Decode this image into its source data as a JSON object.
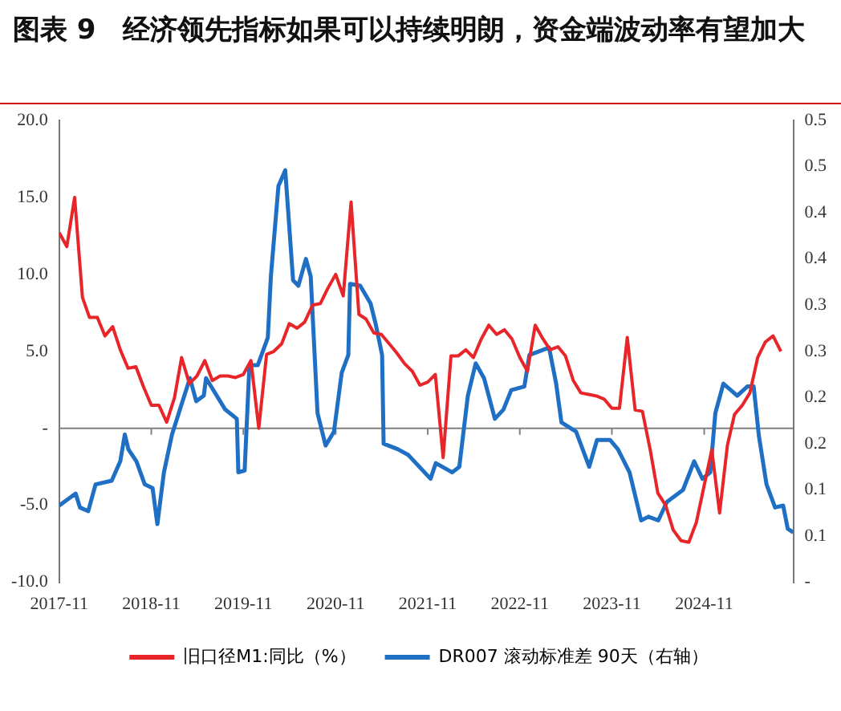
{
  "chart_data": {
    "type": "line",
    "title": "图表 9　经济领先指标如果可以持续明朗，资金端波动率有望加大",
    "xlim": [
      "2017-11",
      "2025-10-20"
    ],
    "xticks": [
      "2017-11",
      "2018-11",
      "2019-11",
      "2020-11",
      "2021-11",
      "2022-11",
      "2023-11",
      "2024-11"
    ],
    "ylim": [
      -10,
      20
    ],
    "yticks": [
      {
        "value": -10,
        "label": "-10.0"
      },
      {
        "value": -5,
        "label": "-5.0"
      },
      {
        "value": 0,
        "label": "-"
      },
      {
        "value": 5,
        "label": "5.0"
      },
      {
        "value": 10,
        "label": "10.0"
      },
      {
        "value": 15,
        "label": "15.0"
      },
      {
        "value": 20,
        "label": "20.0"
      }
    ],
    "y2lim": [
      0,
      0.5
    ],
    "y2ticks": [
      {
        "value": 0,
        "label": "-"
      },
      {
        "value": 0.05,
        "label": "0.1"
      },
      {
        "value": 0.1,
        "label": "0.1"
      },
      {
        "value": 0.15,
        "label": "0.2"
      },
      {
        "value": 0.2,
        "label": "0.2"
      },
      {
        "value": 0.25,
        "label": "0.3"
      },
      {
        "value": 0.3,
        "label": "0.3"
      },
      {
        "value": 0.35,
        "label": "0.4"
      },
      {
        "value": 0.4,
        "label": "0.4"
      },
      {
        "value": 0.45,
        "label": "0.5"
      },
      {
        "value": 0.5,
        "label": "0.5"
      }
    ],
    "grid": false,
    "ref_lines": [
      {
        "axis": "y",
        "value": 0,
        "color": "#808080"
      }
    ],
    "legend": "bottom",
    "marker": "none",
    "line_style": "solid",
    "series": [
      {
        "name": "旧口径M1:同比（%）",
        "color": "#e8262a",
        "x": [
          "2017-11",
          "2017-12",
          "2018-01",
          "2018-02",
          "2018-03",
          "2018-04",
          "2018-05",
          "2018-06",
          "2018-07",
          "2018-08",
          "2018-09",
          "2018-10",
          "2018-11",
          "2018-12",
          "2019-01",
          "2019-02",
          "2019-03",
          "2019-04",
          "2019-05",
          "2019-06",
          "2019-07",
          "2019-08",
          "2019-09",
          "2019-10",
          "2019-11",
          "2019-12",
          "2020-01",
          "2020-02",
          "2020-03",
          "2020-04",
          "2020-05",
          "2020-06",
          "2020-07",
          "2020-08",
          "2020-09",
          "2020-10",
          "2020-11",
          "2020-12",
          "2021-01",
          "2021-02",
          "2021-03",
          "2021-04",
          "2021-05",
          "2021-06",
          "2021-07",
          "2021-08",
          "2021-09",
          "2021-10",
          "2021-11",
          "2021-12",
          "2022-01",
          "2022-02",
          "2022-03",
          "2022-04",
          "2022-05",
          "2022-06",
          "2022-07",
          "2022-08",
          "2022-09",
          "2022-10",
          "2022-11",
          "2022-12",
          "2023-01",
          "2023-02",
          "2023-03",
          "2023-04",
          "2023-05",
          "2023-06",
          "2023-07",
          "2023-08",
          "2023-09",
          "2023-10",
          "2023-11",
          "2023-12",
          "2024-01",
          "2024-02",
          "2024-03",
          "2024-04",
          "2024-05",
          "2024-06",
          "2024-07",
          "2024-08",
          "2024-09",
          "2024-10",
          "2024-11",
          "2024-12",
          "2025-01",
          "2025-02",
          "2025-03",
          "2025-04",
          "2025-05",
          "2025-06",
          "2025-07",
          "2025-08",
          "2025-09"
        ],
        "values": [
          12.7,
          11.8,
          15.0,
          8.5,
          7.2,
          7.2,
          6.0,
          6.6,
          5.1,
          3.9,
          4.0,
          2.7,
          1.5,
          1.5,
          0.4,
          2.0,
          4.6,
          2.9,
          3.4,
          4.4,
          3.1,
          3.4,
          3.4,
          3.3,
          3.5,
          4.4,
          0.0,
          4.8,
          5.0,
          5.5,
          6.8,
          6.5,
          6.9,
          8.0,
          8.1,
          9.1,
          10.0,
          8.6,
          14.7,
          7.4,
          7.1,
          6.2,
          6.1,
          5.5,
          4.9,
          4.2,
          3.7,
          2.8,
          3.0,
          3.5,
          -1.9,
          4.7,
          4.7,
          5.1,
          4.6,
          5.8,
          6.7,
          6.1,
          6.4,
          5.8,
          4.6,
          3.7,
          6.7,
          5.8,
          5.1,
          5.3,
          4.7,
          3.1,
          2.3,
          2.2,
          2.1,
          1.9,
          1.3,
          1.3,
          5.9,
          1.2,
          1.1,
          -1.4,
          -4.2,
          -5.0,
          -6.6,
          -7.3,
          -7.4,
          -6.1,
          -3.7,
          -1.4,
          -5.5,
          -1.1,
          0.9,
          1.5,
          2.3,
          4.6,
          5.6,
          6.0,
          5.0
        ]
      },
      {
        "name": "DR007 滚动标准差 90天（右轴）",
        "color": "#1f6fc5",
        "axis": "y2",
        "x": [
          "2017-11-01",
          "2018-01-05",
          "2018-01-22",
          "2018-02-24",
          "2018-03-25",
          "2018-05-28",
          "2018-07-01",
          "2018-07-19",
          "2018-08-02",
          "2018-09-03",
          "2018-10-06",
          "2018-11-06",
          "2018-11-25",
          "2018-12-21",
          "2019-01-22",
          "2019-04-03",
          "2019-04-28",
          "2019-05-28",
          "2019-06-06",
          "2019-08-21",
          "2019-10-06",
          "2019-10-12",
          "2019-11-06",
          "2019-11-25",
          "2019-12-28",
          "2020-02-06",
          "2020-02-18",
          "2020-03-19",
          "2020-04-15",
          "2020-05-16",
          "2020-06-06",
          "2020-07-06",
          "2020-07-25",
          "2020-08-21",
          "2020-09-22",
          "2020-10-25",
          "2020-11-25",
          "2020-12-21",
          "2020-12-28",
          "2021-02-06",
          "2021-03-19",
          "2021-04-09",
          "2021-05-04",
          "2021-05-10",
          "2021-07-06",
          "2021-08-15",
          "2021-11-12",
          "2021-12-03",
          "2022-02-06",
          "2022-03-06",
          "2022-04-09",
          "2022-05-10",
          "2022-06-12",
          "2022-07-25",
          "2022-08-28",
          "2022-09-28",
          "2022-11-19",
          "2022-12-09",
          "2023-02-25",
          "2023-03-25",
          "2023-04-15",
          "2023-06-12",
          "2023-08-03",
          "2023-09-03",
          "2023-10-25",
          "2023-11-25",
          "2024-01-10",
          "2024-02-25",
          "2024-03-25",
          "2024-05-03",
          "2024-06-06",
          "2024-08-09",
          "2024-09-22",
          "2024-10-25",
          "2024-11-25",
          "2024-12-15",
          "2025-01-16",
          "2025-03-12",
          "2025-04-21",
          "2025-05-16",
          "2025-06-06",
          "2025-07-06",
          "2025-08-09",
          "2025-09-10",
          "2025-09-28",
          "2025-10-20"
        ],
        "values": [
          0.083,
          0.096,
          0.081,
          0.077,
          0.106,
          0.11,
          0.131,
          0.16,
          0.144,
          0.131,
          0.106,
          0.102,
          0.063,
          0.119,
          0.16,
          0.221,
          0.196,
          0.202,
          0.221,
          0.187,
          0.177,
          0.119,
          0.121,
          0.235,
          0.235,
          0.265,
          0.331,
          0.429,
          0.446,
          0.327,
          0.321,
          0.35,
          0.331,
          0.183,
          0.148,
          0.163,
          0.227,
          0.246,
          0.323,
          0.321,
          0.302,
          0.279,
          0.246,
          0.15,
          0.144,
          0.138,
          0.112,
          0.129,
          0.119,
          0.125,
          0.202,
          0.237,
          0.221,
          0.177,
          0.187,
          0.208,
          0.212,
          0.246,
          0.254,
          0.215,
          0.173,
          0.163,
          0.125,
          0.154,
          0.154,
          0.144,
          0.119,
          0.067,
          0.071,
          0.067,
          0.087,
          0.1,
          0.131,
          0.112,
          0.119,
          0.183,
          0.215,
          0.202,
          0.212,
          0.212,
          0.158,
          0.106,
          0.081,
          0.083,
          0.058,
          0.054
        ]
      }
    ]
  }
}
